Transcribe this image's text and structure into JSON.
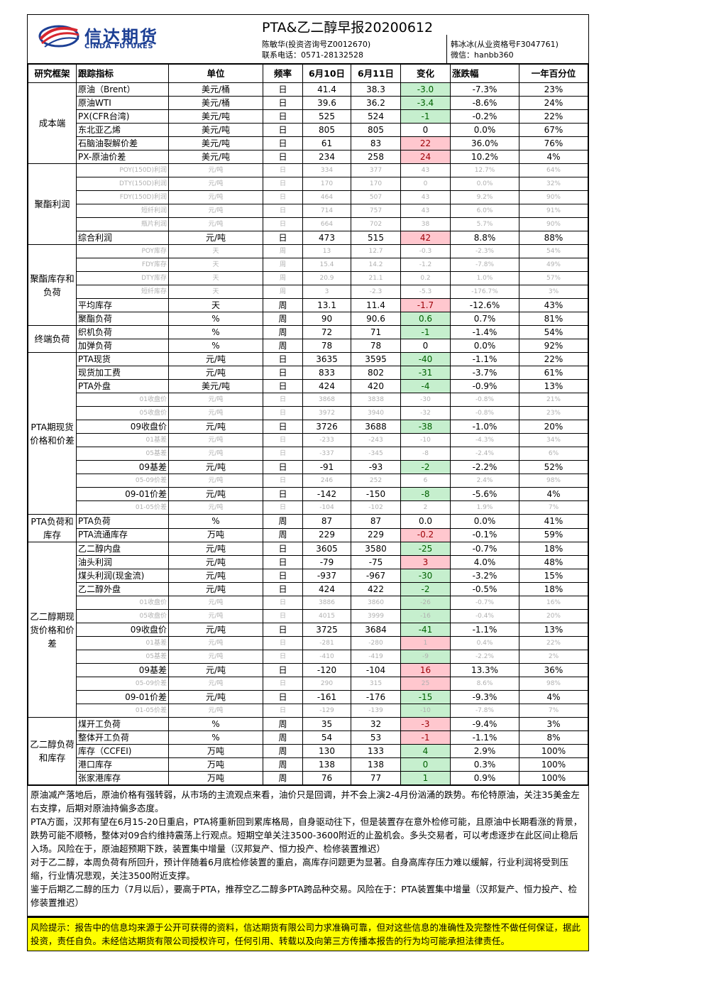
{
  "header": {
    "logo_cn": "信达期货",
    "logo_en": "CINDA FUTURES",
    "title": "PTA&乙二醇早报20200612",
    "author1_line1": "陈敏华(投资咨询号Z0012670)",
    "author1_line2": "联系电话：0571-28132528",
    "author2_line1": "韩冰冰(从业资格号F3047761)",
    "author2_line2": "微信：hanbb360"
  },
  "table": {
    "columns": [
      "研究框架",
      "跟踪指标",
      "单位",
      "频率",
      "6月10日",
      "6月11日",
      "变化",
      "涨跌幅",
      "一年百分位"
    ],
    "groups": [
      {
        "name": "成本端",
        "rows": [
          {
            "indicator": "原油（Brent）",
            "unit": "美元/桶",
            "freq": "日",
            "d1": "41.4",
            "d2": "38.3",
            "chg": "-3.0",
            "chg_color": "green",
            "pct": "-7.3%",
            "pctl": "23%",
            "dim": false,
            "align": "l"
          },
          {
            "indicator": "原油WTI",
            "unit": "美元/桶",
            "freq": "日",
            "d1": "39.6",
            "d2": "36.2",
            "chg": "-3.4",
            "chg_color": "green",
            "pct": "-8.6%",
            "pctl": "24%",
            "dim": false,
            "align": "l"
          },
          {
            "indicator": "PX(CFR台湾)",
            "unit": "美元/吨",
            "freq": "日",
            "d1": "525",
            "d2": "524",
            "chg": "-1",
            "chg_color": "green",
            "pct": "-0.2%",
            "pctl": "22%",
            "dim": false,
            "align": "l"
          },
          {
            "indicator": "东北亚乙烯",
            "unit": "美元/吨",
            "freq": "日",
            "d1": "805",
            "d2": "805",
            "chg": "0",
            "chg_color": "",
            "pct": "0.0%",
            "pctl": "67%",
            "dim": false,
            "align": "l"
          },
          {
            "indicator": "石脑油裂解价差",
            "unit": "美元/吨",
            "freq": "日",
            "d1": "61",
            "d2": "83",
            "chg": "22",
            "chg_color": "red",
            "pct": "36.0%",
            "pctl": "76%",
            "dim": false,
            "align": "l"
          },
          {
            "indicator": "PX-原油价差",
            "unit": "美元/吨",
            "freq": "日",
            "d1": "234",
            "d2": "258",
            "chg": "24",
            "chg_color": "red",
            "pct": "10.2%",
            "pctl": "4%",
            "dim": false,
            "align": "l"
          }
        ]
      },
      {
        "name": "聚酯利润",
        "rows": [
          {
            "indicator": "POY(150D)利润",
            "unit": "元/吨",
            "freq": "日",
            "d1": "334",
            "d2": "377",
            "chg": "43",
            "chg_color": "",
            "pct": "12.7%",
            "pctl": "64%",
            "dim": true,
            "align": "r"
          },
          {
            "indicator": "DTY(150D)利润",
            "unit": "元/吨",
            "freq": "日",
            "d1": "170",
            "d2": "170",
            "chg": "0",
            "chg_color": "",
            "pct": "0.0%",
            "pctl": "32%",
            "dim": true,
            "align": "r"
          },
          {
            "indicator": "FDY(150D)利润",
            "unit": "元/吨",
            "freq": "日",
            "d1": "464",
            "d2": "507",
            "chg": "43",
            "chg_color": "",
            "pct": "9.2%",
            "pctl": "90%",
            "dim": true,
            "align": "r"
          },
          {
            "indicator": "短纤利润",
            "unit": "元/吨",
            "freq": "日",
            "d1": "714",
            "d2": "757",
            "chg": "43",
            "chg_color": "",
            "pct": "6.0%",
            "pctl": "91%",
            "dim": true,
            "align": "r"
          },
          {
            "indicator": "瓶片利润",
            "unit": "元/吨",
            "freq": "日",
            "d1": "664",
            "d2": "702",
            "chg": "38",
            "chg_color": "",
            "pct": "5.7%",
            "pctl": "90%",
            "dim": true,
            "align": "r"
          },
          {
            "indicator": "综合利润",
            "unit": "元/吨",
            "freq": "日",
            "d1": "473",
            "d2": "515",
            "chg": "42",
            "chg_color": "red",
            "pct": "8.8%",
            "pctl": "88%",
            "dim": false,
            "align": "l"
          }
        ]
      },
      {
        "name": "聚酯库存和负荷",
        "rows": [
          {
            "indicator": "POY库存",
            "unit": "天",
            "freq": "周",
            "d1": "13",
            "d2": "12.7",
            "chg": "-0.3",
            "chg_color": "",
            "pct": "-2.3%",
            "pctl": "54%",
            "dim": true,
            "align": "r"
          },
          {
            "indicator": "FDY库存",
            "unit": "天",
            "freq": "周",
            "d1": "15.4",
            "d2": "14.2",
            "chg": "-1.2",
            "chg_color": "",
            "pct": "-7.8%",
            "pctl": "49%",
            "dim": true,
            "align": "r"
          },
          {
            "indicator": "DTY库存",
            "unit": "天",
            "freq": "周",
            "d1": "20.9",
            "d2": "21.1",
            "chg": "0.2",
            "chg_color": "",
            "pct": "1.0%",
            "pctl": "57%",
            "dim": true,
            "align": "r"
          },
          {
            "indicator": "短纤库存",
            "unit": "天",
            "freq": "周",
            "d1": "3",
            "d2": "-2.3",
            "chg": "-5.3",
            "chg_color": "",
            "pct": "-176.7%",
            "pctl": "3%",
            "dim": true,
            "align": "r"
          },
          {
            "indicator": "平均库存",
            "unit": "天",
            "freq": "周",
            "d1": "13.1",
            "d2": "11.4",
            "chg": "-1.7",
            "chg_color": "red",
            "pct": "-12.6%",
            "pctl": "43%",
            "dim": false,
            "align": "l"
          },
          {
            "indicator": "聚酯负荷",
            "unit": "%",
            "freq": "周",
            "d1": "90",
            "d2": "90.6",
            "chg": "0.6",
            "chg_color": "green",
            "pct": "0.7%",
            "pctl": "81%",
            "dim": false,
            "align": "l"
          }
        ]
      },
      {
        "name": "终端负荷",
        "rows": [
          {
            "indicator": "织机负荷",
            "unit": "%",
            "freq": "周",
            "d1": "72",
            "d2": "71",
            "chg": "-1",
            "chg_color": "green",
            "pct": "-1.4%",
            "pctl": "54%",
            "dim": false,
            "align": "l"
          },
          {
            "indicator": "加弹负荷",
            "unit": "%",
            "freq": "周",
            "d1": "78",
            "d2": "78",
            "chg": "0",
            "chg_color": "",
            "pct": "0.0%",
            "pctl": "92%",
            "dim": false,
            "align": "l"
          }
        ]
      },
      {
        "name": "PTA期现货价格和价差",
        "rows": [
          {
            "indicator": "PTA现货",
            "unit": "元/吨",
            "freq": "日",
            "d1": "3635",
            "d2": "3595",
            "chg": "-40",
            "chg_color": "green",
            "pct": "-1.1%",
            "pctl": "22%",
            "dim": false,
            "align": "l"
          },
          {
            "indicator": "现货加工费",
            "unit": "元/吨",
            "freq": "日",
            "d1": "833",
            "d2": "802",
            "chg": "-31",
            "chg_color": "green",
            "pct": "-3.7%",
            "pctl": "61%",
            "dim": false,
            "align": "l"
          },
          {
            "indicator": "PTA外盘",
            "unit": "美元/吨",
            "freq": "日",
            "d1": "424",
            "d2": "420",
            "chg": "-4",
            "chg_color": "green",
            "pct": "-0.9%",
            "pctl": "13%",
            "dim": false,
            "align": "l"
          },
          {
            "indicator": "01收盘价",
            "unit": "元/吨",
            "freq": "日",
            "d1": "3868",
            "d2": "3838",
            "chg": "-30",
            "chg_color": "",
            "pct": "-0.8%",
            "pctl": "21%",
            "dim": true,
            "align": "r"
          },
          {
            "indicator": "05收盘价",
            "unit": "元/吨",
            "freq": "日",
            "d1": "3972",
            "d2": "3940",
            "chg": "-32",
            "chg_color": "",
            "pct": "-0.8%",
            "pctl": "23%",
            "dim": true,
            "align": "r"
          },
          {
            "indicator": "09收盘价",
            "unit": "元/吨",
            "freq": "日",
            "d1": "3726",
            "d2": "3688",
            "chg": "-38",
            "chg_color": "green",
            "pct": "-1.0%",
            "pctl": "20%",
            "dim": false,
            "align": "r"
          },
          {
            "indicator": "01基差",
            "unit": "元/吨",
            "freq": "日",
            "d1": "-233",
            "d2": "-243",
            "chg": "-10",
            "chg_color": "",
            "pct": "-4.3%",
            "pctl": "34%",
            "dim": true,
            "align": "r"
          },
          {
            "indicator": "05基差",
            "unit": "元/吨",
            "freq": "日",
            "d1": "-337",
            "d2": "-345",
            "chg": "-8",
            "chg_color": "",
            "pct": "-2.4%",
            "pctl": "6%",
            "dim": true,
            "align": "r"
          },
          {
            "indicator": "09基差",
            "unit": "元/吨",
            "freq": "日",
            "d1": "-91",
            "d2": "-93",
            "chg": "-2",
            "chg_color": "green",
            "pct": "-2.2%",
            "pctl": "52%",
            "dim": false,
            "align": "r"
          },
          {
            "indicator": "05-09价差",
            "unit": "元/吨",
            "freq": "日",
            "d1": "246",
            "d2": "252",
            "chg": "6",
            "chg_color": "",
            "pct": "2.4%",
            "pctl": "98%",
            "dim": true,
            "align": "r"
          },
          {
            "indicator": "09-01价差",
            "unit": "元/吨",
            "freq": "日",
            "d1": "-142",
            "d2": "-150",
            "chg": "-8",
            "chg_color": "green",
            "pct": "-5.6%",
            "pctl": "4%",
            "dim": false,
            "align": "r"
          },
          {
            "indicator": "01-05价差",
            "unit": "元/吨",
            "freq": "日",
            "d1": "-104",
            "d2": "-102",
            "chg": "2",
            "chg_color": "",
            "pct": "1.9%",
            "pctl": "7%",
            "dim": true,
            "align": "r"
          }
        ]
      },
      {
        "name": "PTA负荷和库存",
        "rows": [
          {
            "indicator": "PTA负荷",
            "unit": "%",
            "freq": "周",
            "d1": "87",
            "d2": "87",
            "chg": "0.0",
            "chg_color": "",
            "pct": "0.0%",
            "pctl": "41%",
            "dim": false,
            "align": "l"
          },
          {
            "indicator": "PTA流通库存",
            "unit": "万吨",
            "freq": "周",
            "d1": "229",
            "d2": "229",
            "chg": "-0.2",
            "chg_color": "red",
            "pct": "-0.1%",
            "pctl": "59%",
            "dim": false,
            "align": "l"
          }
        ]
      },
      {
        "name": "乙二醇期现货价格和价差",
        "rows": [
          {
            "indicator": "乙二醇内盘",
            "unit": "元/吨",
            "freq": "日",
            "d1": "3605",
            "d2": "3580",
            "chg": "-25",
            "chg_color": "green",
            "pct": "-0.7%",
            "pctl": "18%",
            "dim": false,
            "align": "l"
          },
          {
            "indicator": "油头利润",
            "unit": "元/吨",
            "freq": "日",
            "d1": "-79",
            "d2": "-75",
            "chg": "3",
            "chg_color": "red",
            "pct": "4.0%",
            "pctl": "48%",
            "dim": false,
            "align": "l"
          },
          {
            "indicator": "煤头利润(现金流)",
            "unit": "元/吨",
            "freq": "日",
            "d1": "-937",
            "d2": "-967",
            "chg": "-30",
            "chg_color": "green",
            "pct": "-3.2%",
            "pctl": "15%",
            "dim": false,
            "align": "l"
          },
          {
            "indicator": "乙二醇外盘",
            "unit": "元/吨",
            "freq": "日",
            "d1": "424",
            "d2": "422",
            "chg": "-2",
            "chg_color": "green",
            "pct": "-0.5%",
            "pctl": "18%",
            "dim": false,
            "align": "l"
          },
          {
            "indicator": "01收盘价",
            "unit": "元/吨",
            "freq": "日",
            "d1": "3886",
            "d2": "3860",
            "chg": "-26",
            "chg_color": "green",
            "pct": "-0.7%",
            "pctl": "16%",
            "dim": true,
            "align": "r"
          },
          {
            "indicator": "05收盘价",
            "unit": "元/吨",
            "freq": "日",
            "d1": "4015",
            "d2": "3999",
            "chg": "-16",
            "chg_color": "green",
            "pct": "-0.4%",
            "pctl": "20%",
            "dim": true,
            "align": "r"
          },
          {
            "indicator": "09收盘价",
            "unit": "元/吨",
            "freq": "日",
            "d1": "3725",
            "d2": "3684",
            "chg": "-41",
            "chg_color": "green",
            "pct": "-1.1%",
            "pctl": "13%",
            "dim": false,
            "align": "r"
          },
          {
            "indicator": "01基差",
            "unit": "元/吨",
            "freq": "日",
            "d1": "-281",
            "d2": "-280",
            "chg": "1",
            "chg_color": "red",
            "pct": "0.4%",
            "pctl": "22%",
            "dim": true,
            "align": "r"
          },
          {
            "indicator": "05基差",
            "unit": "元/吨",
            "freq": "日",
            "d1": "-410",
            "d2": "-419",
            "chg": "-9",
            "chg_color": "green",
            "pct": "-2.2%",
            "pctl": "2%",
            "dim": true,
            "align": "r"
          },
          {
            "indicator": "09基差",
            "unit": "元/吨",
            "freq": "日",
            "d1": "-120",
            "d2": "-104",
            "chg": "16",
            "chg_color": "red",
            "pct": "13.3%",
            "pctl": "36%",
            "dim": false,
            "align": "r"
          },
          {
            "indicator": "05-09价差",
            "unit": "元/吨",
            "freq": "日",
            "d1": "290",
            "d2": "315",
            "chg": "25",
            "chg_color": "red",
            "pct": "8.6%",
            "pctl": "98%",
            "dim": true,
            "align": "r"
          },
          {
            "indicator": "09-01价差",
            "unit": "元/吨",
            "freq": "日",
            "d1": "-161",
            "d2": "-176",
            "chg": "-15",
            "chg_color": "green",
            "pct": "-9.3%",
            "pctl": "4%",
            "dim": false,
            "align": "r"
          },
          {
            "indicator": "01-05价差",
            "unit": "元/吨",
            "freq": "日",
            "d1": "-129",
            "d2": "-139",
            "chg": "-10",
            "chg_color": "green",
            "pct": "-7.8%",
            "pctl": "7%",
            "dim": true,
            "align": "r"
          }
        ]
      },
      {
        "name": "乙二醇负荷和库存",
        "rows": [
          {
            "indicator": "煤开工负荷",
            "unit": "%",
            "freq": "周",
            "d1": "35",
            "d2": "32",
            "chg": "-3",
            "chg_color": "red",
            "pct": "-9.4%",
            "pctl": "3%",
            "dim": false,
            "align": "l"
          },
          {
            "indicator": "整体开工负荷",
            "unit": "%",
            "freq": "周",
            "d1": "54",
            "d2": "53",
            "chg": "-1",
            "chg_color": "red",
            "pct": "-1.1%",
            "pctl": "8%",
            "dim": false,
            "align": "l"
          },
          {
            "indicator": "库存（CCFEI)",
            "unit": "万吨",
            "freq": "周",
            "d1": "130",
            "d2": "133",
            "chg": "4",
            "chg_color": "green",
            "pct": "2.9%",
            "pctl": "100%",
            "dim": false,
            "align": "l"
          },
          {
            "indicator": "港口库存",
            "unit": "万吨",
            "freq": "周",
            "d1": "138",
            "d2": "138",
            "chg": "0",
            "chg_color": "green",
            "pct": "0.3%",
            "pctl": "100%",
            "dim": false,
            "align": "l"
          },
          {
            "indicator": "张家港库存",
            "unit": "万吨",
            "freq": "周",
            "d1": "76",
            "d2": "77",
            "chg": "1",
            "chg_color": "green",
            "pct": "0.9%",
            "pctl": "100%",
            "dim": false,
            "align": "l"
          }
        ]
      }
    ]
  },
  "commentary": [
    "原油减产落地后，原油价格有强转弱，从市场的主流观点来看，油价只是回调，并不会上演2-4月份汹涌的跌势。布伦特原油，关注35美金左右支撑，后期对原油持偏多态度。",
    "PTA方面，汉邦有望在6月15-20日重启，PTA将重新回到累库格局，自身驱动往下，但是装置存在意外检修可能，且原油中长期看涨的背景，跌势可能不顺畅，整体对09合约维持震荡上行观点。短期空单关注3500-3600附近的止盈机会。多头交易者，可以考虑逐步在此区间止稳后入场。风险在于，原油超预期下跌，装置集中增量（汉邦复产、恒力投产、检修装置推迟）",
    "对于乙二醇，本周负荷有所回升，预计伴随着6月底检修装置的重启，高库存问题更为显著。自身高库存压力难以缓解，行业利润将受到压缩，行业情况悲观，关注3500附近支撑。",
    "鉴于后期乙二醇的压力（7月以后），要高于PTA，推荐空乙二醇多PTA跨品种交易。风险在于：PTA装置集中增量（汉邦复产、恒力投产、检修装置推迟）"
  ],
  "risk_notice": "风险提示：报告中的信息均来源于公开可获得的资料，信达期货有限公司力求准确可靠，但对这些信息的准确性及完整性不做任何保证，据此投资，责任自负。未经信达期货有限公司授权许可，任何引用、转载以及向第三方传播本报告的行为均可能承担法律责任。",
  "colors": {
    "logo_blue": "#1c3f94",
    "logo_red": "#d7262f",
    "green_fill": "#c6efce",
    "red_fill": "#ffc7ce",
    "risk_fill": "#ffff00"
  }
}
